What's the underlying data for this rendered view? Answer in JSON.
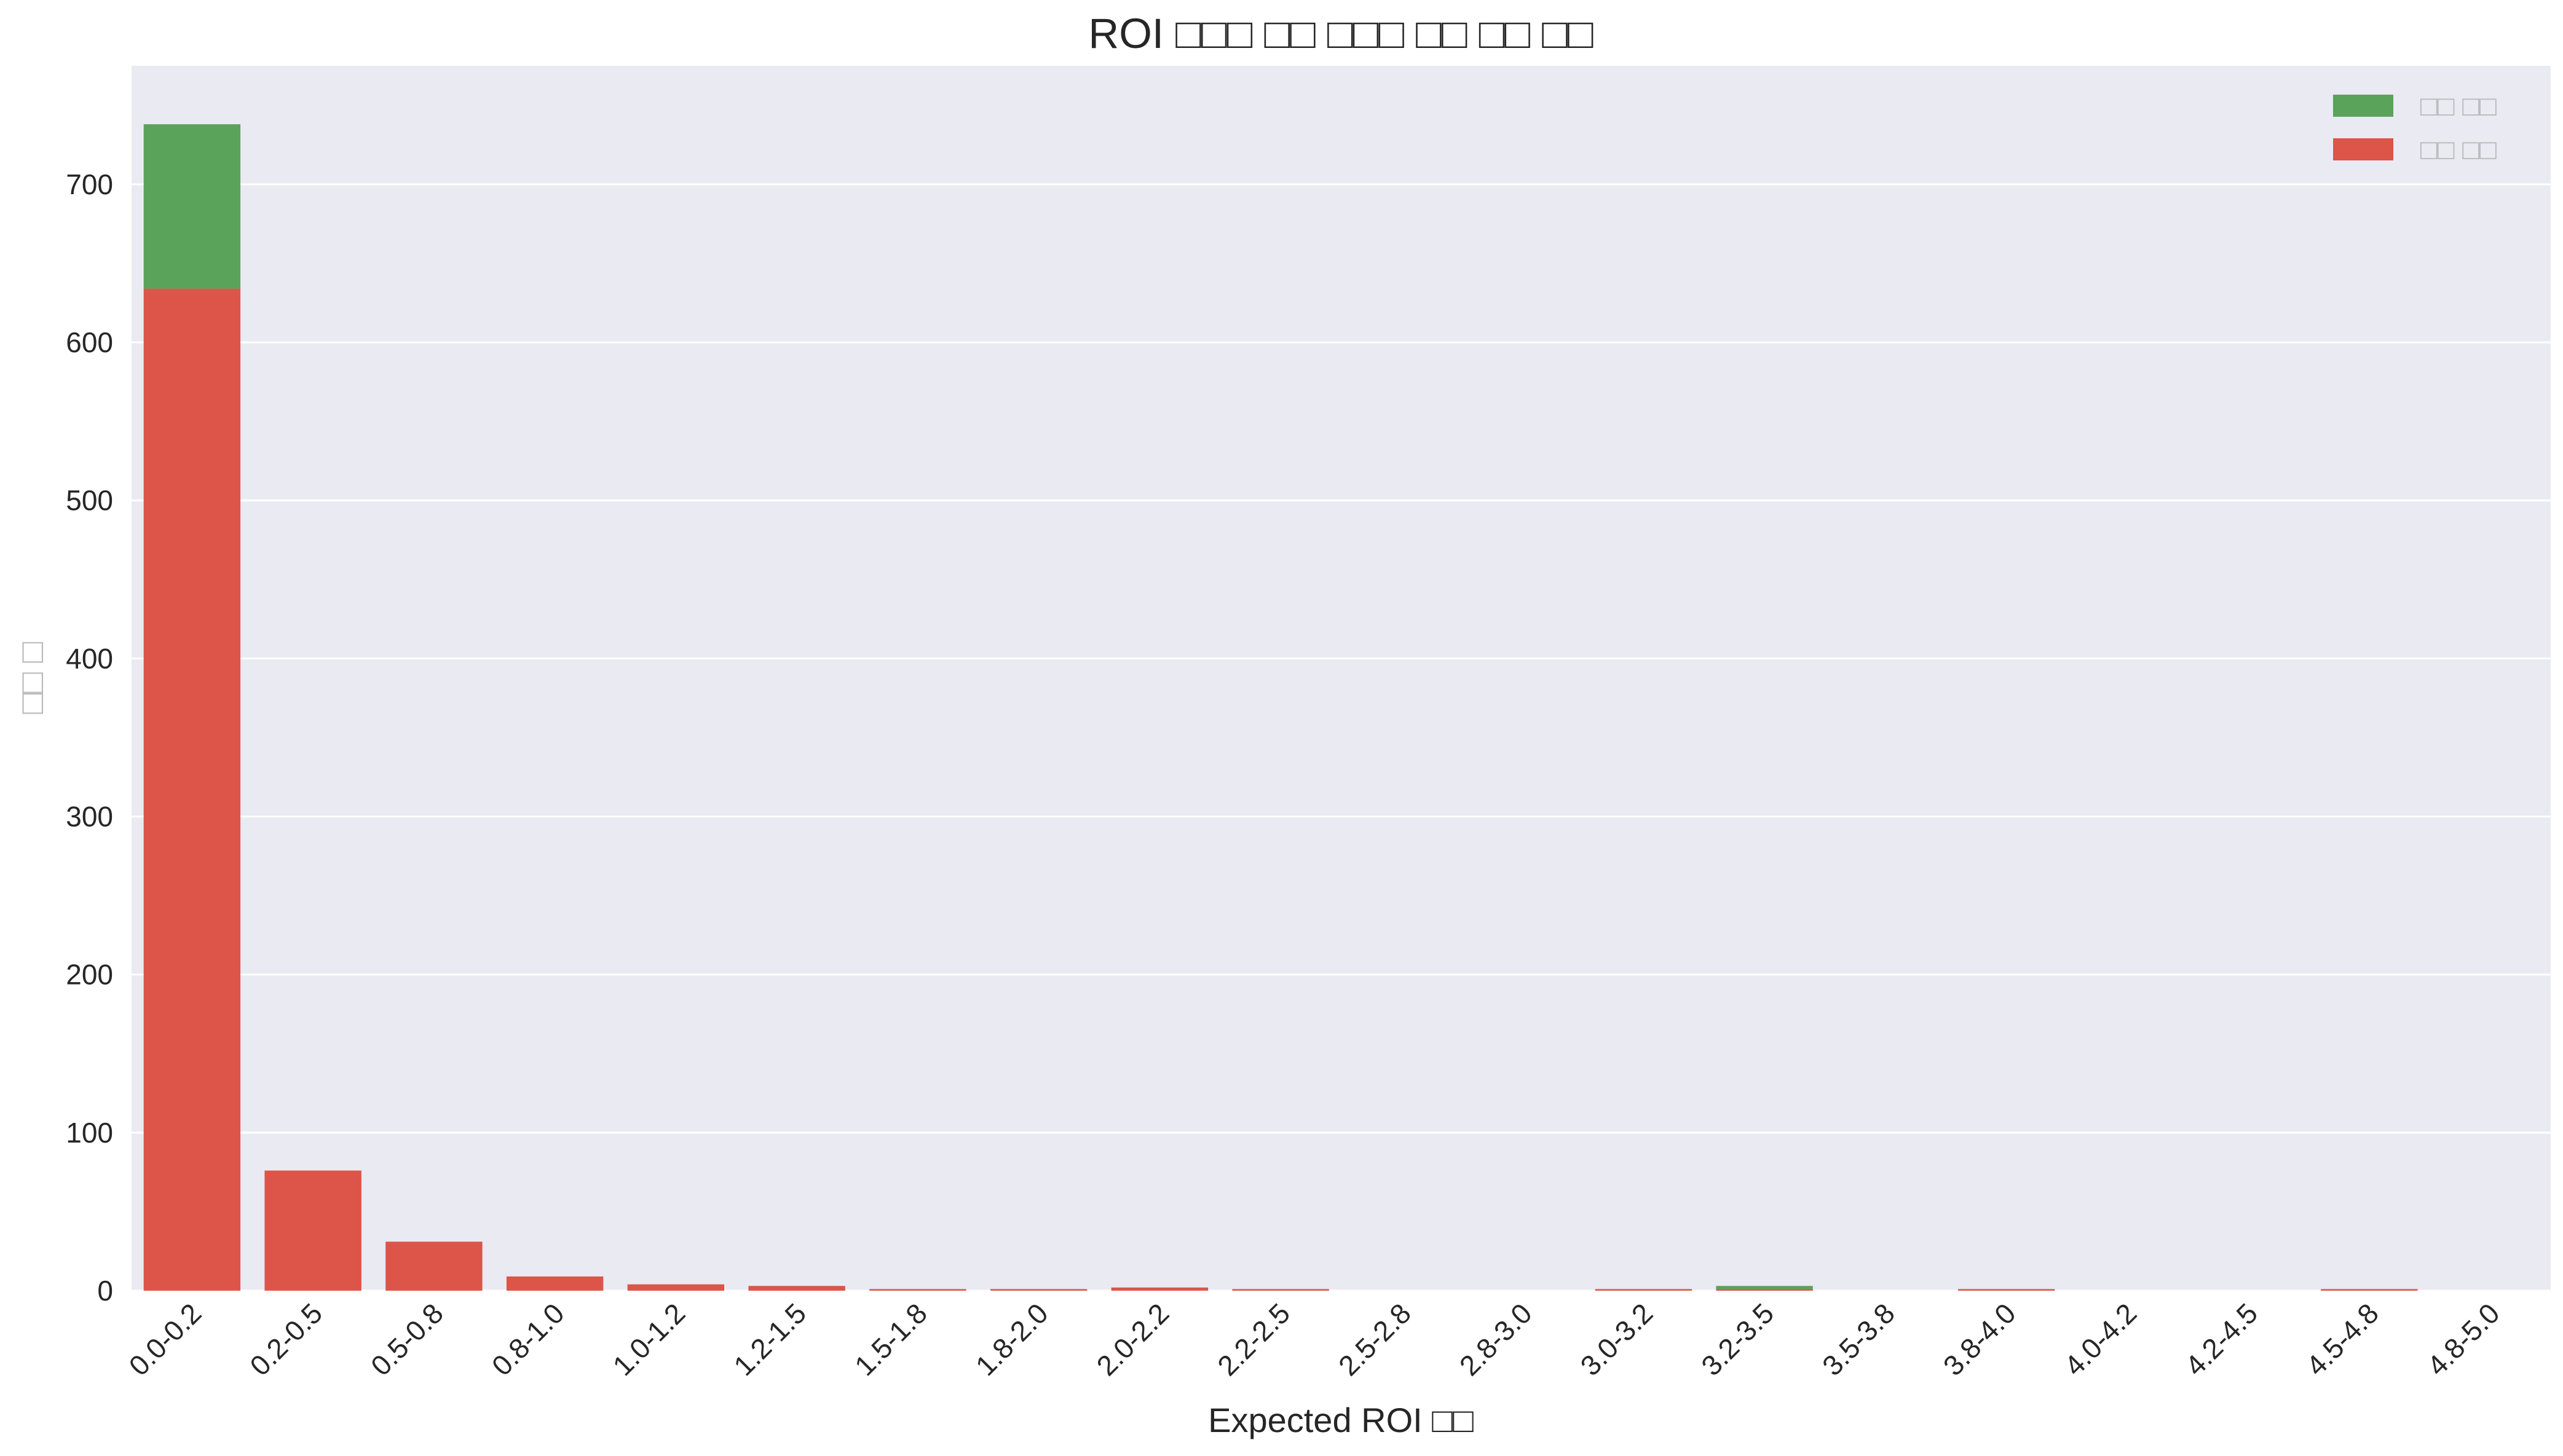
{
  "chart_data": {
    "type": "bar",
    "stacked": true,
    "title": "ROI □□□ □□ □□□ □□ □□ □□",
    "xlabel": "Expected ROI □□",
    "ylabel": "□□ □",
    "categories": [
      "0.0-0.2",
      "0.2-0.5",
      "0.5-0.8",
      "0.8-1.0",
      "1.0-1.2",
      "1.2-1.5",
      "1.5-1.8",
      "1.8-2.0",
      "2.0-2.2",
      "2.2-2.5",
      "2.5-2.8",
      "2.8-3.0",
      "3.0-3.2",
      "3.2-3.5",
      "3.5-3.8",
      "3.8-4.0",
      "4.0-4.2",
      "4.2-4.5",
      "4.5-4.8",
      "4.8-5.0"
    ],
    "series": [
      {
        "name": "□□ □□",
        "color": "#dd5449",
        "values": [
          634,
          76,
          31,
          9,
          4,
          3,
          1,
          1,
          2,
          1,
          0,
          0,
          1,
          1,
          0,
          1,
          0,
          0,
          1,
          0
        ]
      },
      {
        "name": "□□ □□",
        "color": "#5aa35a",
        "values": [
          104,
          0,
          0,
          0,
          0,
          0,
          0,
          0,
          0,
          0,
          0,
          0,
          0,
          2,
          0,
          0,
          0,
          0,
          0,
          0
        ]
      }
    ],
    "yticks": [
      0,
      100,
      200,
      300,
      400,
      500,
      600,
      700
    ],
    "ylim": [
      0,
      775
    ],
    "grid": true,
    "legend_position": "top-right",
    "background_color": "#eaeaf2"
  }
}
